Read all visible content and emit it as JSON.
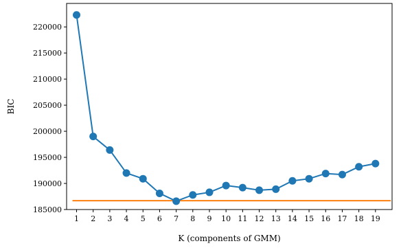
{
  "chart_data": {
    "type": "line",
    "title": "",
    "xlabel": "K (components of GMM)",
    "ylabel": "BIC",
    "x": [
      1,
      2,
      3,
      4,
      5,
      6,
      7,
      8,
      9,
      10,
      11,
      12,
      13,
      14,
      15,
      16,
      17,
      18,
      19
    ],
    "series": [
      {
        "name": "",
        "color": "#1f77b4",
        "marker": "circle",
        "values": [
          222300,
          199000,
          196400,
          192000,
          190900,
          188100,
          186600,
          187800,
          188300,
          189600,
          189200,
          188700,
          188900,
          190500,
          190900,
          191900,
          191700,
          193200,
          193800
        ]
      }
    ],
    "reference_line": {
      "y": 186700,
      "color": "#ff7f0e"
    },
    "xlim": [
      0.4,
      20.0
    ],
    "ylim": [
      185000,
      224500
    ],
    "xticks": [
      1,
      2,
      3,
      4,
      5,
      6,
      7,
      8,
      9,
      10,
      11,
      12,
      13,
      14,
      15,
      16,
      17,
      18,
      19
    ],
    "yticks": [
      185000,
      190000,
      195000,
      200000,
      205000,
      210000,
      215000,
      220000
    ],
    "grid": false,
    "legend": "none"
  }
}
